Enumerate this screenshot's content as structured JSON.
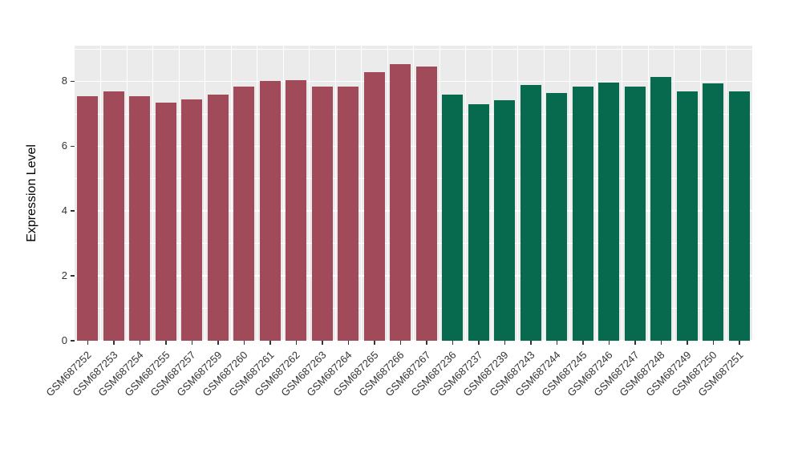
{
  "figure": {
    "background": "#FFFFFF",
    "panel_background": "#EBEBEB",
    "grid_color": "#FFFFFF",
    "axis_text_color": "#333333"
  },
  "chart_data": {
    "type": "bar",
    "title": "",
    "xlabel": "",
    "ylabel": "Expression Level",
    "ylim": [
      0,
      9.1
    ],
    "yticks": [
      0,
      2,
      4,
      6,
      8
    ],
    "yticks_minor": [
      1,
      3,
      5,
      7,
      9
    ],
    "grid": true,
    "legend": "none",
    "categories": [
      "GSM687252",
      "GSM687253",
      "GSM687254",
      "GSM687255",
      "GSM687257",
      "GSM687259",
      "GSM687260",
      "GSM687261",
      "GSM687262",
      "GSM687263",
      "GSM687264",
      "GSM687265",
      "GSM687266",
      "GSM687267",
      "GSM687236",
      "GSM687237",
      "GSM687239",
      "GSM687243",
      "GSM687244",
      "GSM687245",
      "GSM687246",
      "GSM687247",
      "GSM687248",
      "GSM687249",
      "GSM687250",
      "GSM687251"
    ],
    "values": [
      7.55,
      7.7,
      7.55,
      7.35,
      7.45,
      7.6,
      7.85,
      8.0,
      8.03,
      7.85,
      7.85,
      8.28,
      8.52,
      8.45,
      7.58,
      7.3,
      7.43,
      7.9,
      7.65,
      7.85,
      7.97,
      7.83,
      8.13,
      7.7,
      7.93,
      7.68
    ],
    "groups": [
      "group1",
      "group1",
      "group1",
      "group1",
      "group1",
      "group1",
      "group1",
      "group1",
      "group1",
      "group1",
      "group1",
      "group1",
      "group1",
      "group1",
      "group2",
      "group2",
      "group2",
      "group2",
      "group2",
      "group2",
      "group2",
      "group2",
      "group2",
      "group2",
      "group2",
      "group2"
    ],
    "group_colors": {
      "group1": "#A04A5A",
      "group2": "#07694E"
    }
  }
}
